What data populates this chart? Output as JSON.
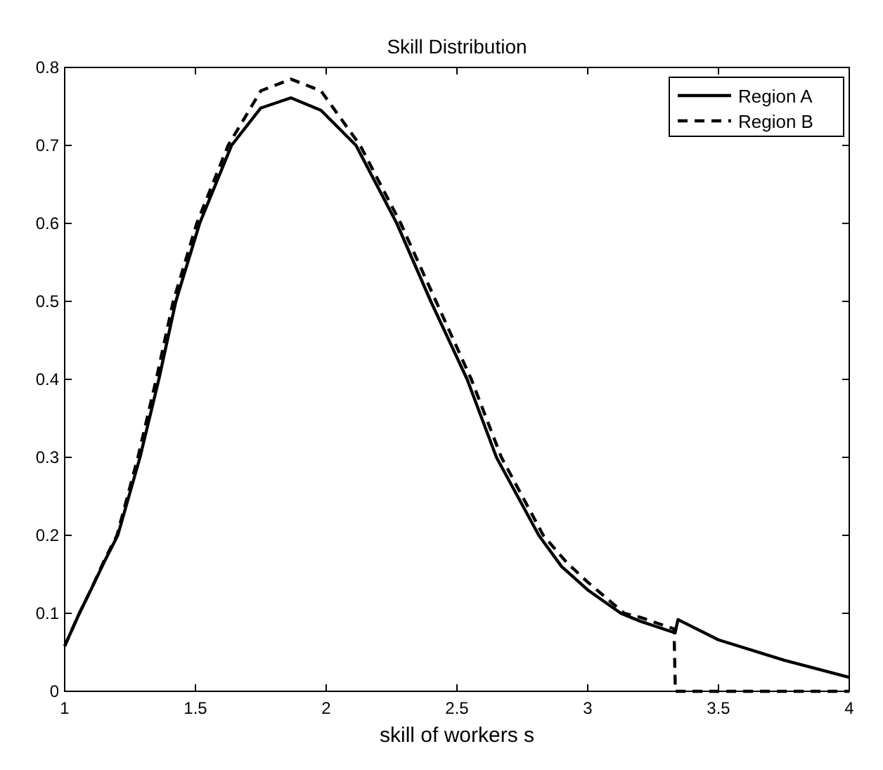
{
  "chart_data": {
    "type": "line",
    "title": "Skill Distribution",
    "xlabel": "skill of workers s",
    "xlim": [
      1,
      4
    ],
    "xticks": [
      1,
      1.5,
      2,
      2.5,
      3,
      3.5,
      4
    ],
    "ylim": [
      0,
      0.8
    ],
    "yticks": [
      0,
      0.1,
      0.2,
      0.3,
      0.4,
      0.5,
      0.6,
      0.7,
      0.8
    ],
    "legend": "top right",
    "grid": false,
    "series": [
      {
        "name": "Region A",
        "color": "#000000",
        "line_style": "solid",
        "x": [
          1,
          1.056,
          1.1,
          1.15,
          1.203,
          1.288,
          1.36,
          1.425,
          1.516,
          1.638,
          1.75,
          1.865,
          1.98,
          2.114,
          2.27,
          2.4,
          2.539,
          2.651,
          2.813,
          2.9,
          3,
          3.127,
          3.2,
          3.334,
          3.345,
          3.5,
          3.75,
          4
        ],
        "values": [
          0.058,
          0.1,
          0.13,
          0.165,
          0.2,
          0.3,
          0.4,
          0.5,
          0.6,
          0.7,
          0.748,
          0.761,
          0.745,
          0.7,
          0.6,
          0.5,
          0.4,
          0.3,
          0.2,
          0.16,
          0.13,
          0.1,
          0.09,
          0.075,
          0.092,
          0.066,
          0.04,
          0.018
        ]
      },
      {
        "name": "Region B",
        "color": "#000000",
        "line_style": "dashed",
        "x": [
          1,
          1.056,
          1.1,
          1.15,
          1.2,
          1.28,
          1.35,
          1.415,
          1.505,
          1.625,
          1.75,
          1.865,
          1.98,
          2.13,
          2.285,
          2.42,
          2.555,
          2.67,
          2.83,
          2.92,
          3,
          3.14,
          3.2,
          3.33,
          3.335,
          4
        ],
        "values": [
          0.058,
          0.1,
          0.13,
          0.167,
          0.2,
          0.3,
          0.4,
          0.5,
          0.6,
          0.7,
          0.77,
          0.785,
          0.77,
          0.7,
          0.6,
          0.5,
          0.4,
          0.3,
          0.2,
          0.165,
          0.14,
          0.1,
          0.095,
          0.08,
          0,
          0
        ]
      }
    ]
  }
}
